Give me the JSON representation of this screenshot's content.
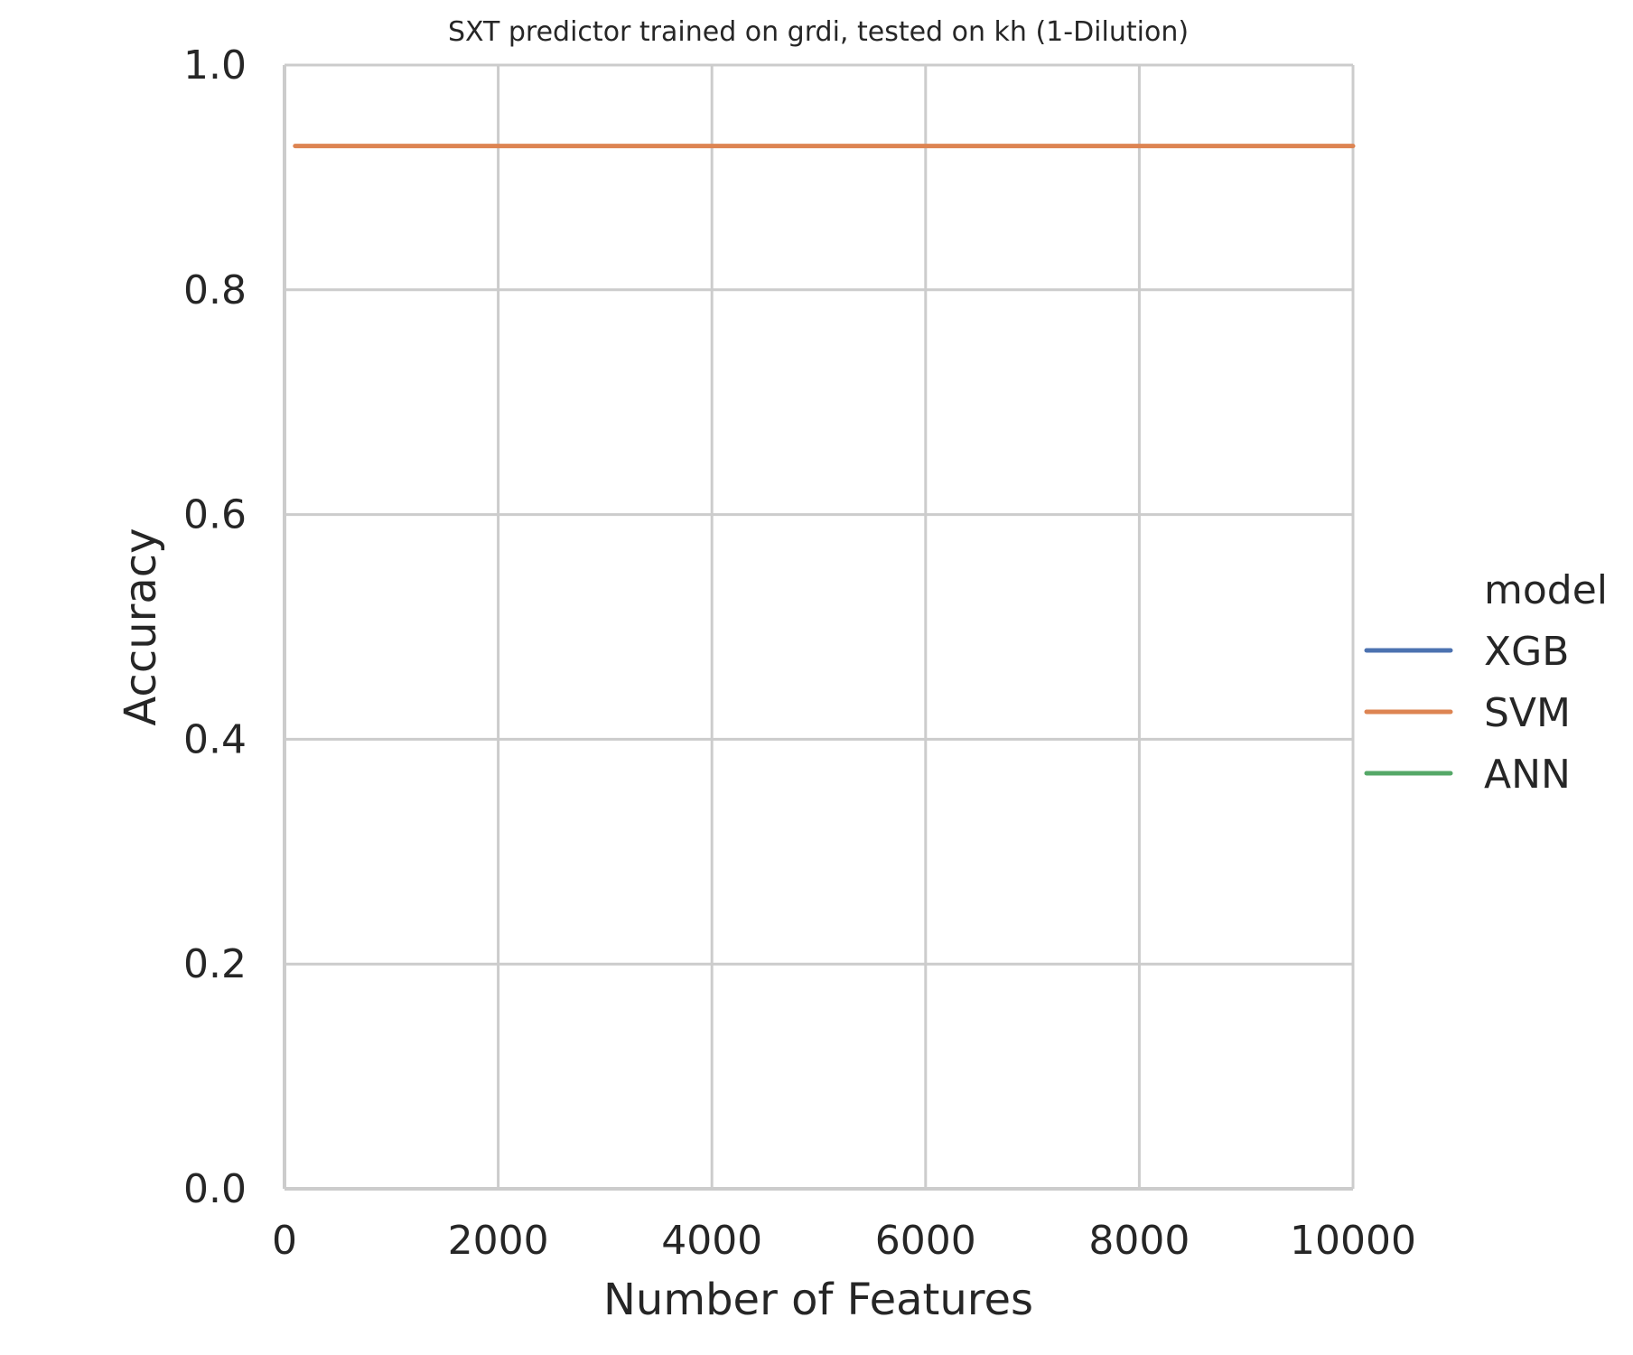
{
  "chart_data": {
    "type": "line",
    "title": "SXT predictor trained on grdi, tested on kh (1-Dilution)",
    "xlabel": "Number of Features",
    "ylabel": "Accuracy",
    "xlim": [
      0,
      10000
    ],
    "ylim": [
      0.0,
      1.0
    ],
    "x_ticks": [
      "0",
      "2000",
      "4000",
      "6000",
      "8000",
      "10000"
    ],
    "y_ticks": [
      "0.0",
      "0.2",
      "0.4",
      "0.6",
      "0.8",
      "1.0"
    ],
    "grid": true,
    "legend": {
      "title": "model",
      "placement": "center-right, outside"
    },
    "series": [
      {
        "name": "XGB",
        "color": "#4c72b0",
        "x": [],
        "y": []
      },
      {
        "name": "SVM",
        "color": "#dd8452",
        "x": [
          100,
          1000,
          2000,
          3000,
          4000,
          5000,
          6000,
          7000,
          8000,
          9000,
          10000
        ],
        "y": [
          0.928,
          0.928,
          0.928,
          0.928,
          0.928,
          0.928,
          0.928,
          0.928,
          0.928,
          0.928,
          0.928
        ]
      },
      {
        "name": "ANN",
        "color": "#55a868",
        "x": [],
        "y": []
      }
    ]
  }
}
